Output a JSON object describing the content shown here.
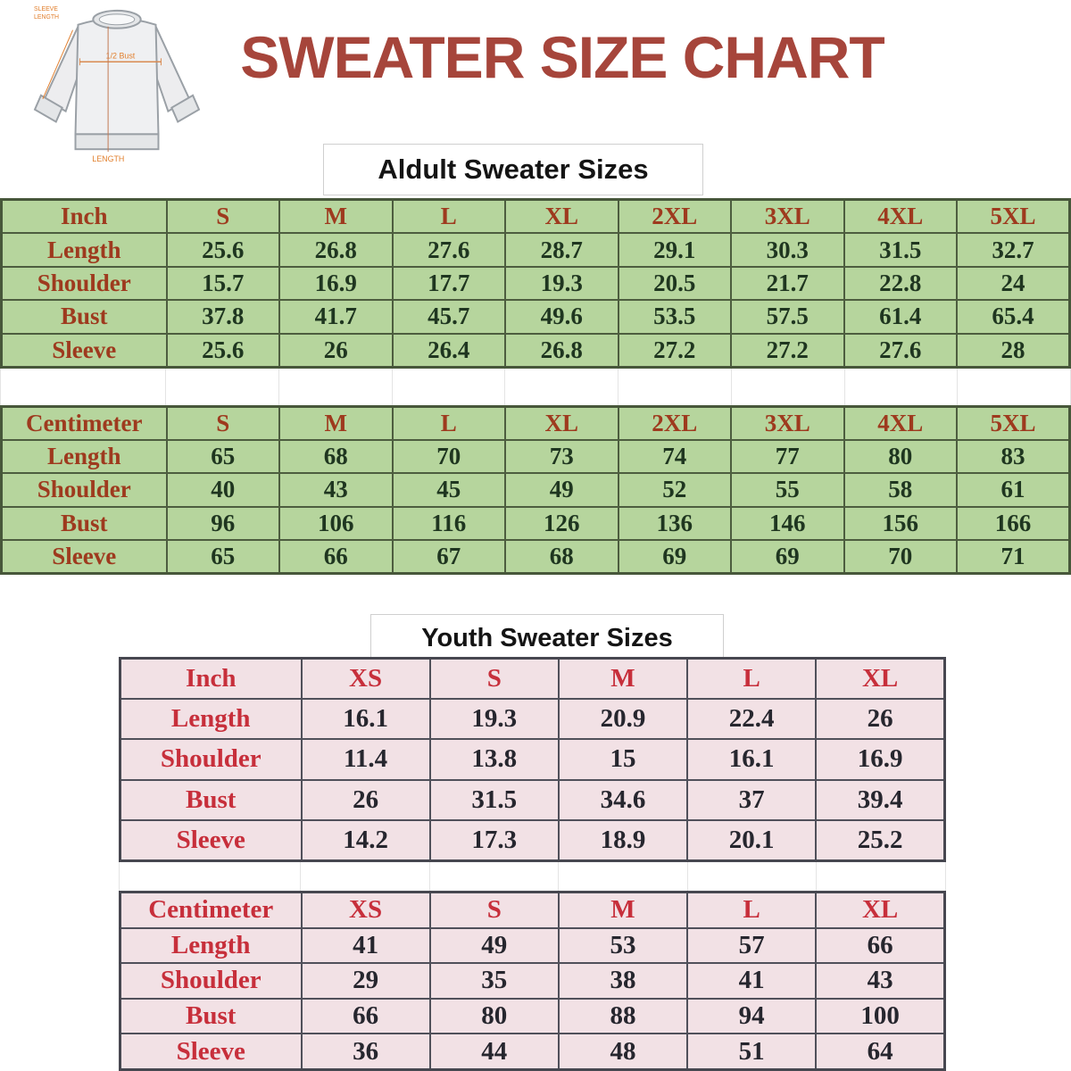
{
  "page": {
    "title": "SWEATER SIZE CHART"
  },
  "diagram": {
    "sleeve_label_line1": "SLEEVE",
    "sleeve_label_line2": "LENGTH",
    "bust_label": "1/2 Bust",
    "length_label": "LENGTH"
  },
  "adult": {
    "heading": "Aldult Sweater Sizes",
    "inch": {
      "unit_label": "Inch",
      "sizes": [
        "S",
        "M",
        "L",
        "XL",
        "2XL",
        "3XL",
        "4XL",
        "5XL"
      ],
      "rows": [
        {
          "label": "Length",
          "values": [
            "25.6",
            "26.8",
            "27.6",
            "28.7",
            "29.1",
            "30.3",
            "31.5",
            "32.7"
          ]
        },
        {
          "label": "Shoulder",
          "values": [
            "15.7",
            "16.9",
            "17.7",
            "19.3",
            "20.5",
            "21.7",
            "22.8",
            "24"
          ]
        },
        {
          "label": "Bust",
          "values": [
            "37.8",
            "41.7",
            "45.7",
            "49.6",
            "53.5",
            "57.5",
            "61.4",
            "65.4"
          ]
        },
        {
          "label": "Sleeve",
          "values": [
            "25.6",
            "26",
            "26.4",
            "26.8",
            "27.2",
            "27.2",
            "27.6",
            "28"
          ]
        }
      ]
    },
    "centimeter": {
      "unit_label": "Centimeter",
      "sizes": [
        "S",
        "M",
        "L",
        "XL",
        "2XL",
        "3XL",
        "4XL",
        "5XL"
      ],
      "rows": [
        {
          "label": "Length",
          "values": [
            "65",
            "68",
            "70",
            "73",
            "74",
            "77",
            "80",
            "83"
          ]
        },
        {
          "label": "Shoulder",
          "values": [
            "40",
            "43",
            "45",
            "49",
            "52",
            "55",
            "58",
            "61"
          ]
        },
        {
          "label": "Bust",
          "values": [
            "96",
            "106",
            "116",
            "126",
            "136",
            "146",
            "156",
            "166"
          ]
        },
        {
          "label": "Sleeve",
          "values": [
            "65",
            "66",
            "67",
            "68",
            "69",
            "69",
            "70",
            "71"
          ]
        }
      ]
    }
  },
  "youth": {
    "heading": "Youth Sweater Sizes",
    "inch": {
      "unit_label": "Inch",
      "sizes": [
        "XS",
        "S",
        "M",
        "L",
        "XL"
      ],
      "rows": [
        {
          "label": "Length",
          "values": [
            "16.1",
            "19.3",
            "20.9",
            "22.4",
            "26"
          ]
        },
        {
          "label": "Shoulder",
          "values": [
            "11.4",
            "13.8",
            "15",
            "16.1",
            "16.9"
          ]
        },
        {
          "label": "Bust",
          "values": [
            "26",
            "31.5",
            "34.6",
            "37",
            "39.4"
          ]
        },
        {
          "label": "Sleeve",
          "values": [
            "14.2",
            "17.3",
            "18.9",
            "20.1",
            "25.2"
          ]
        }
      ]
    },
    "centimeter": {
      "unit_label": "Centimeter",
      "sizes": [
        "XS",
        "S",
        "M",
        "L",
        "XL"
      ],
      "rows": [
        {
          "label": "Length",
          "values": [
            "41",
            "49",
            "53",
            "57",
            "66"
          ]
        },
        {
          "label": "Shoulder",
          "values": [
            "29",
            "35",
            "38",
            "41",
            "43"
          ]
        },
        {
          "label": "Bust",
          "values": [
            "66",
            "80",
            "88",
            "94",
            "100"
          ]
        },
        {
          "label": "Sleeve",
          "values": [
            "36",
            "44",
            "48",
            "51",
            "64"
          ]
        }
      ]
    }
  },
  "colors": {
    "title_red": "#a6453b",
    "green_table_bg": "#b6d59d",
    "green_table_border": "#47573a",
    "green_label_text": "#9e3a1e",
    "green_value_text": "#1f3620",
    "pink_table_bg": "#f2e1e5",
    "pink_table_border": "#474750",
    "pink_label_text": "#c72f3b",
    "pink_value_text": "#26262e",
    "annotation_orange": "#e2802f"
  }
}
